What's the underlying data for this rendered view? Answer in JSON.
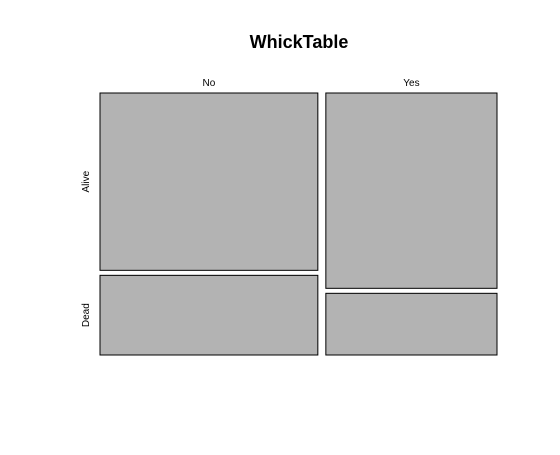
{
  "chart_data": {
    "type": "mosaic",
    "title": "WhickTable",
    "column_variable_levels": [
      "No",
      "Yes"
    ],
    "row_variable_levels": [
      "Alive",
      "Dead"
    ],
    "column_proportions": [
      0.56,
      0.44
    ],
    "conditional_row_proportions": {
      "No": [
        0.69,
        0.31
      ],
      "Yes": [
        0.76,
        0.24
      ]
    },
    "fill_color": "#b3b3b3",
    "border_color": "#000000"
  }
}
